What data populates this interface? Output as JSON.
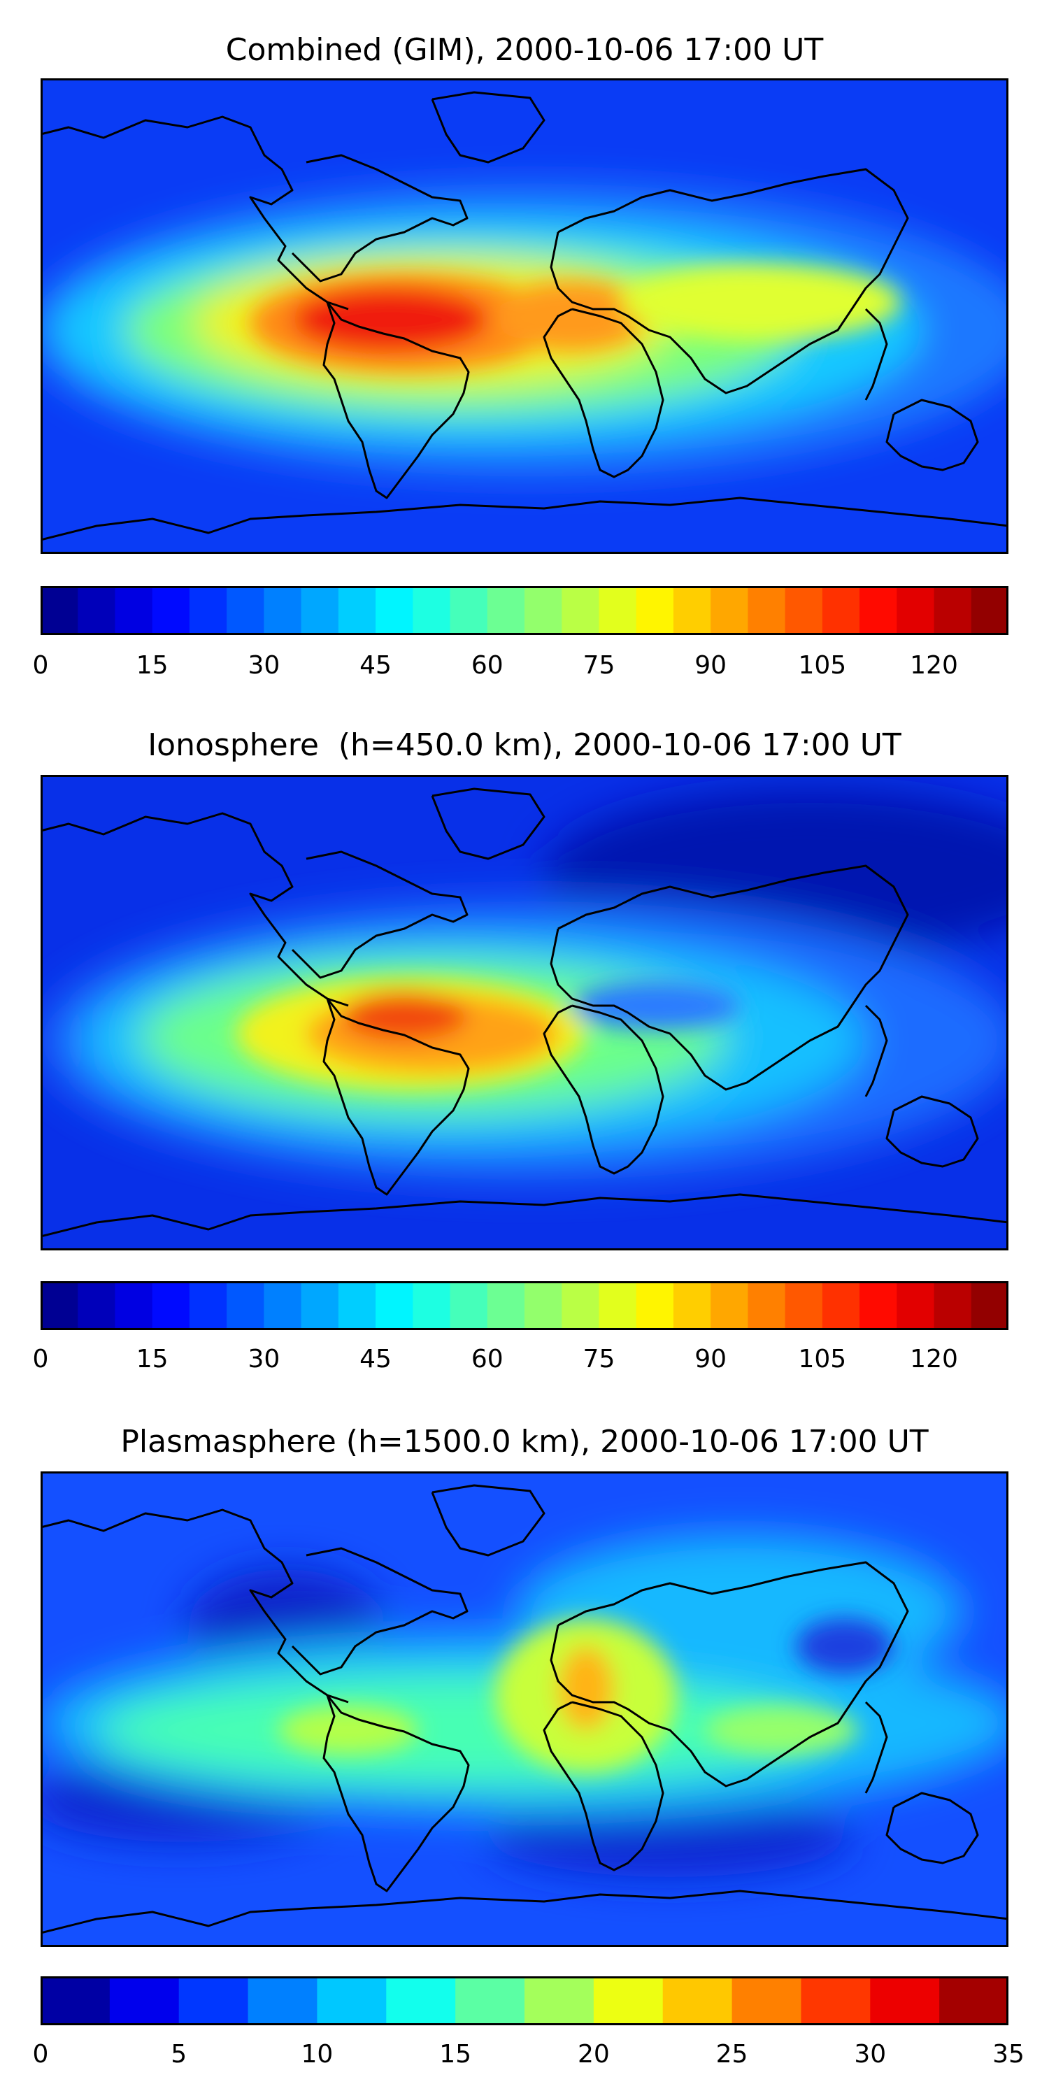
{
  "colormap": "jet",
  "panels": [
    {
      "id": "combined",
      "title": "Combined (GIM), 2000-10-06 17:00 UT",
      "colorbar": {
        "min": 0,
        "max": 130,
        "levels": 26,
        "ticks": [
          "0",
          "15",
          "30",
          "45",
          "60",
          "75",
          "90",
          "105",
          "120"
        ]
      }
    },
    {
      "id": "ionosphere",
      "title": "Ionosphere  (h=450.0 km), 2000-10-06 17:00 UT",
      "colorbar": {
        "min": 0,
        "max": 130,
        "levels": 26,
        "ticks": [
          "0",
          "15",
          "30",
          "45",
          "60",
          "75",
          "90",
          "105",
          "120"
        ]
      }
    },
    {
      "id": "plasmasphere",
      "title": "Plasmasphere (h=1500.0 km), 2000-10-06 17:00 UT",
      "colorbar": {
        "min": 0,
        "max": 35,
        "levels": 14,
        "ticks": [
          "0",
          "5",
          "10",
          "15",
          "20",
          "25",
          "30",
          "35"
        ]
      }
    }
  ]
}
